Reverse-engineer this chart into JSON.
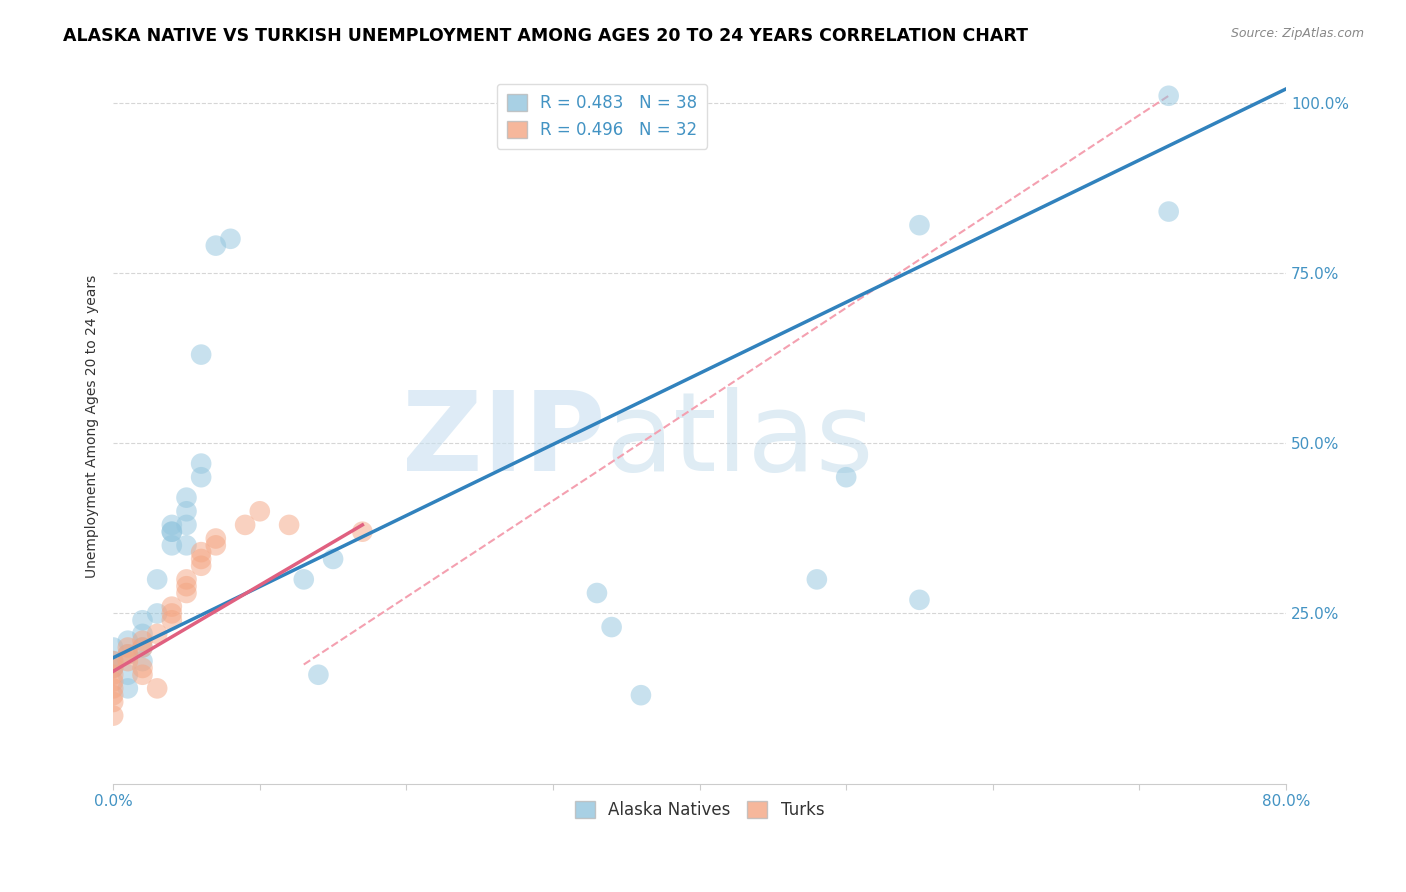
{
  "title": "ALASKA NATIVE VS TURKISH UNEMPLOYMENT AMONG AGES 20 TO 24 YEARS CORRELATION CHART",
  "source": "Source: ZipAtlas.com",
  "ylabel": "Unemployment Among Ages 20 to 24 years",
  "xlim": [
    0.0,
    0.8
  ],
  "ylim": [
    0.0,
    1.05
  ],
  "x_ticks": [
    0.0,
    0.1,
    0.2,
    0.3,
    0.4,
    0.5,
    0.6,
    0.7,
    0.8
  ],
  "y_ticks": [
    0.25,
    0.5,
    0.75,
    1.0
  ],
  "watermark_ZIP": "ZIP",
  "watermark_atlas": "atlas",
  "legend_blue_R": "R = 0.483",
  "legend_blue_N": "N = 38",
  "legend_pink_R": "R = 0.496",
  "legend_pink_N": "N = 32",
  "blue_color": "#92c5de",
  "pink_color": "#f4a582",
  "blue_line_color": "#3182bd",
  "pink_line_color": "#e06080",
  "pink_dashed_color": "#f4a0b0",
  "tick_color": "#4393c3",
  "label_color": "#333333",
  "alaska_points_x": [
    0.0,
    0.0,
    0.0,
    0.01,
    0.01,
    0.01,
    0.01,
    0.02,
    0.02,
    0.02,
    0.02,
    0.03,
    0.03,
    0.04,
    0.04,
    0.04,
    0.04,
    0.05,
    0.05,
    0.05,
    0.05,
    0.06,
    0.06,
    0.06,
    0.07,
    0.08,
    0.13,
    0.14,
    0.15,
    0.33,
    0.34,
    0.36,
    0.48,
    0.5,
    0.55,
    0.55,
    0.72,
    0.72
  ],
  "alaska_points_y": [
    0.18,
    0.2,
    0.17,
    0.19,
    0.21,
    0.16,
    0.14,
    0.22,
    0.24,
    0.2,
    0.18,
    0.25,
    0.3,
    0.37,
    0.38,
    0.37,
    0.35,
    0.35,
    0.38,
    0.4,
    0.42,
    0.45,
    0.47,
    0.63,
    0.79,
    0.8,
    0.3,
    0.16,
    0.33,
    0.28,
    0.23,
    0.13,
    0.3,
    0.45,
    0.27,
    0.82,
    0.84,
    1.01
  ],
  "turkish_points_x": [
    0.0,
    0.0,
    0.0,
    0.0,
    0.0,
    0.0,
    0.0,
    0.0,
    0.01,
    0.01,
    0.01,
    0.02,
    0.02,
    0.02,
    0.02,
    0.03,
    0.03,
    0.04,
    0.04,
    0.04,
    0.05,
    0.05,
    0.05,
    0.06,
    0.06,
    0.06,
    0.07,
    0.07,
    0.09,
    0.1,
    0.12,
    0.17
  ],
  "turkish_points_y": [
    0.1,
    0.12,
    0.13,
    0.14,
    0.15,
    0.16,
    0.17,
    0.18,
    0.18,
    0.19,
    0.2,
    0.2,
    0.21,
    0.16,
    0.17,
    0.22,
    0.14,
    0.24,
    0.25,
    0.26,
    0.28,
    0.29,
    0.3,
    0.32,
    0.33,
    0.34,
    0.35,
    0.36,
    0.38,
    0.4,
    0.38,
    0.37
  ],
  "blue_line": {
    "x0": 0.0,
    "y0": 0.185,
    "x1": 0.8,
    "y1": 1.02
  },
  "pink_line": {
    "x0": 0.0,
    "y0": 0.165,
    "x1": 0.17,
    "y1": 0.38
  },
  "pink_dashed_line": {
    "x0": 0.13,
    "y0": 0.175,
    "x1": 0.72,
    "y1": 1.01
  },
  "background_color": "#ffffff",
  "grid_color": "#cccccc",
  "title_fontsize": 12.5,
  "axis_label_fontsize": 10,
  "tick_fontsize": 11,
  "legend_fontsize": 12
}
